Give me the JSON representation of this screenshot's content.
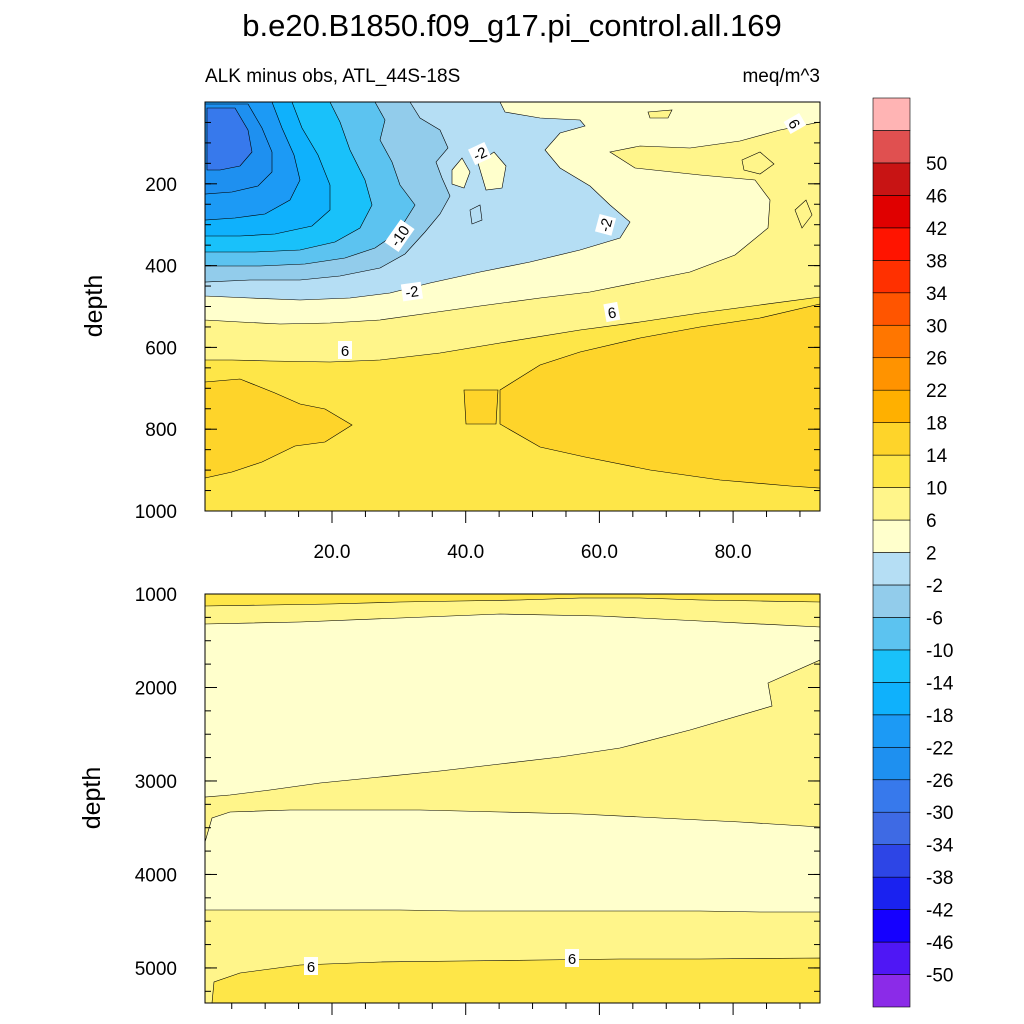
{
  "chart_data": {
    "type": "contour",
    "title": "b.e20.B1850.f09_g17.pi_control.all.169",
    "units": "meq/m^3",
    "colorbar": {
      "levels": [
        -50,
        -46,
        -42,
        -38,
        -34,
        -30,
        -26,
        -22,
        -18,
        -14,
        -10,
        -6,
        -2,
        2,
        6,
        10,
        14,
        18,
        22,
        26,
        30,
        34,
        38,
        42,
        46,
        50
      ],
      "colors": [
        "#8B2BE8",
        "#4F17F5",
        "#1500FF",
        "#1A22F0",
        "#2D45E6",
        "#3E6AE4",
        "#3779EC",
        "#1E90F0",
        "#1C9AF5",
        "#0FB1FC",
        "#19C1FA",
        "#5CC3F0",
        "#92CCEB",
        "#B5DEF4",
        "#FFFFCC",
        "#FFF58A",
        "#FEE648",
        "#FED42A",
        "#FFB000",
        "#FF9300",
        "#FF7600",
        "#FF5500",
        "#FF3000",
        "#FF1400",
        "#E00000",
        "#C81414",
        "#E05050",
        "#FFB4B4"
      ]
    },
    "panels": [
      {
        "subtitle_left": "ALK minus obs, ATL_44S-18S",
        "subtitle_right": "meq/m^3",
        "ylabel": "depth",
        "y_ticks": [
          "200",
          "400",
          "600",
          "800",
          "1000"
        ],
        "y_tick_values": [
          200,
          400,
          600,
          800,
          1000
        ],
        "ylim": [
          0,
          1000
        ],
        "x_ticks": [
          "20.0",
          "40.0",
          "60.0",
          "80.0"
        ],
        "x_tick_values": [
          20,
          40,
          60,
          80
        ],
        "xlim": [
          1,
          93
        ],
        "contour_labels": [
          "-2",
          "-10",
          "-2",
          "-2",
          "6",
          "6",
          "6"
        ]
      },
      {
        "ylabel": "depth",
        "y_ticks": [
          "1000",
          "2000",
          "3000",
          "4000",
          "5000"
        ],
        "y_tick_values": [
          1000,
          2000,
          3000,
          4000,
          5000
        ],
        "ylim": [
          1000,
          5375
        ],
        "xlim": [
          1,
          93
        ],
        "contour_labels": [
          "6",
          "6"
        ]
      }
    ]
  }
}
